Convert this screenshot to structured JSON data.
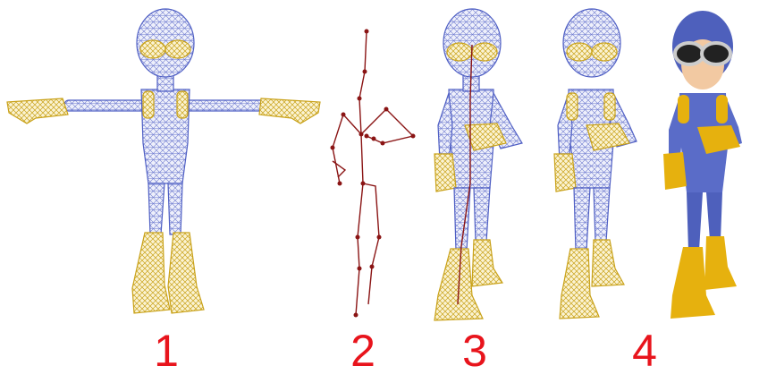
{
  "labels": [
    "1",
    "2",
    "3",
    "4"
  ]
}
